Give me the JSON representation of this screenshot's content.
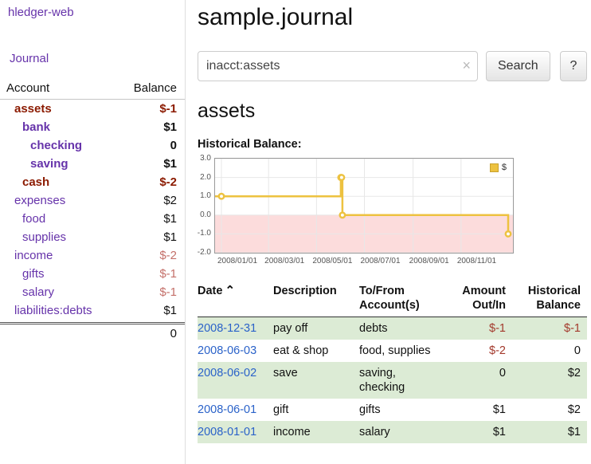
{
  "colors": {
    "purple": "#6633aa",
    "blue": "#2a62c9",
    "neg_dark": "#8b1a00",
    "neg_light": "#c4706a",
    "neg_med": "#a3392c",
    "green_row": "#dcebd5",
    "chart_yellow": "#edc240",
    "chart_pink": "#fcdcdc"
  },
  "sidebar": {
    "app_title": "hledger-web",
    "journal_link": "Journal",
    "account_header": "Account",
    "balance_header": "Balance",
    "accounts": [
      {
        "name": "assets",
        "balance": "$-1"
      },
      {
        "name": "bank",
        "balance": "$1"
      },
      {
        "name": "checking",
        "balance": "0"
      },
      {
        "name": "saving",
        "balance": "$1"
      },
      {
        "name": "cash",
        "balance": "$-2"
      },
      {
        "name": "expenses",
        "balance": "$2"
      },
      {
        "name": "food",
        "balance": "$1"
      },
      {
        "name": "supplies",
        "balance": "$1"
      },
      {
        "name": "income",
        "balance": "$-2"
      },
      {
        "name": "gifts",
        "balance": "$-1"
      },
      {
        "name": "salary",
        "balance": "$-1"
      },
      {
        "name": "liabilities:debts",
        "balance": "$1"
      }
    ],
    "total": "0"
  },
  "main": {
    "title": "sample.journal",
    "search": {
      "value": "inacct:assets",
      "clear_icon": "×",
      "button_label": "Search",
      "help_label": "?"
    },
    "account_heading": "assets",
    "chart_label": "Historical Balance:"
  },
  "chart_data": {
    "type": "line",
    "step": true,
    "title": "Historical Balance",
    "series": [
      {
        "name": "$",
        "points": [
          [
            "2008-01-01",
            1
          ],
          [
            "2008-06-01",
            2
          ],
          [
            "2008-06-02",
            2
          ],
          [
            "2008-06-03",
            0
          ],
          [
            "2008-12-31",
            -1
          ]
        ]
      }
    ],
    "ylim": [
      -2,
      3
    ],
    "yticks": [
      3.0,
      2.0,
      1.0,
      0.0,
      -1.0,
      -2.0
    ],
    "xticks": [
      {
        "date": "2008-01-01",
        "label": "2008/01/01"
      },
      {
        "date": "2008-03-01",
        "label": "2008/03/01"
      },
      {
        "date": "2008-05-01",
        "label": "2008/05/01"
      },
      {
        "date": "2008-07-01",
        "label": "2008/07/01"
      },
      {
        "date": "2008-09-01",
        "label": "2008/09/01"
      },
      {
        "date": "2008-11-01",
        "label": "2008/11/01"
      }
    ],
    "xrange": [
      "2008-01-01",
      "2008-12-31"
    ],
    "legend": {
      "label": "$",
      "position": "top-right"
    },
    "grid": true,
    "negative_zone_shaded": true
  },
  "register": {
    "sort_indicator": "⌃",
    "headers": {
      "date": "Date",
      "description": "Description",
      "accounts": "To/From Account(s)",
      "amount": "Amount Out/In",
      "balance": "Historical Balance"
    },
    "rows": [
      {
        "date": "2008-12-31",
        "description": "pay off",
        "accounts": "debts",
        "amount": "$-1",
        "balance": "$-1"
      },
      {
        "date": "2008-06-03",
        "description": "eat & shop",
        "accounts": "food, supplies",
        "amount": "$-2",
        "balance": "0"
      },
      {
        "date": "2008-06-02",
        "description": "save",
        "accounts": "saving, checking",
        "amount": "0",
        "balance": "$2"
      },
      {
        "date": "2008-06-01",
        "description": "gift",
        "accounts": "gifts",
        "amount": "$1",
        "balance": "$2"
      },
      {
        "date": "2008-01-01",
        "description": "income",
        "accounts": "salary",
        "amount": "$1",
        "balance": "$1"
      }
    ]
  }
}
